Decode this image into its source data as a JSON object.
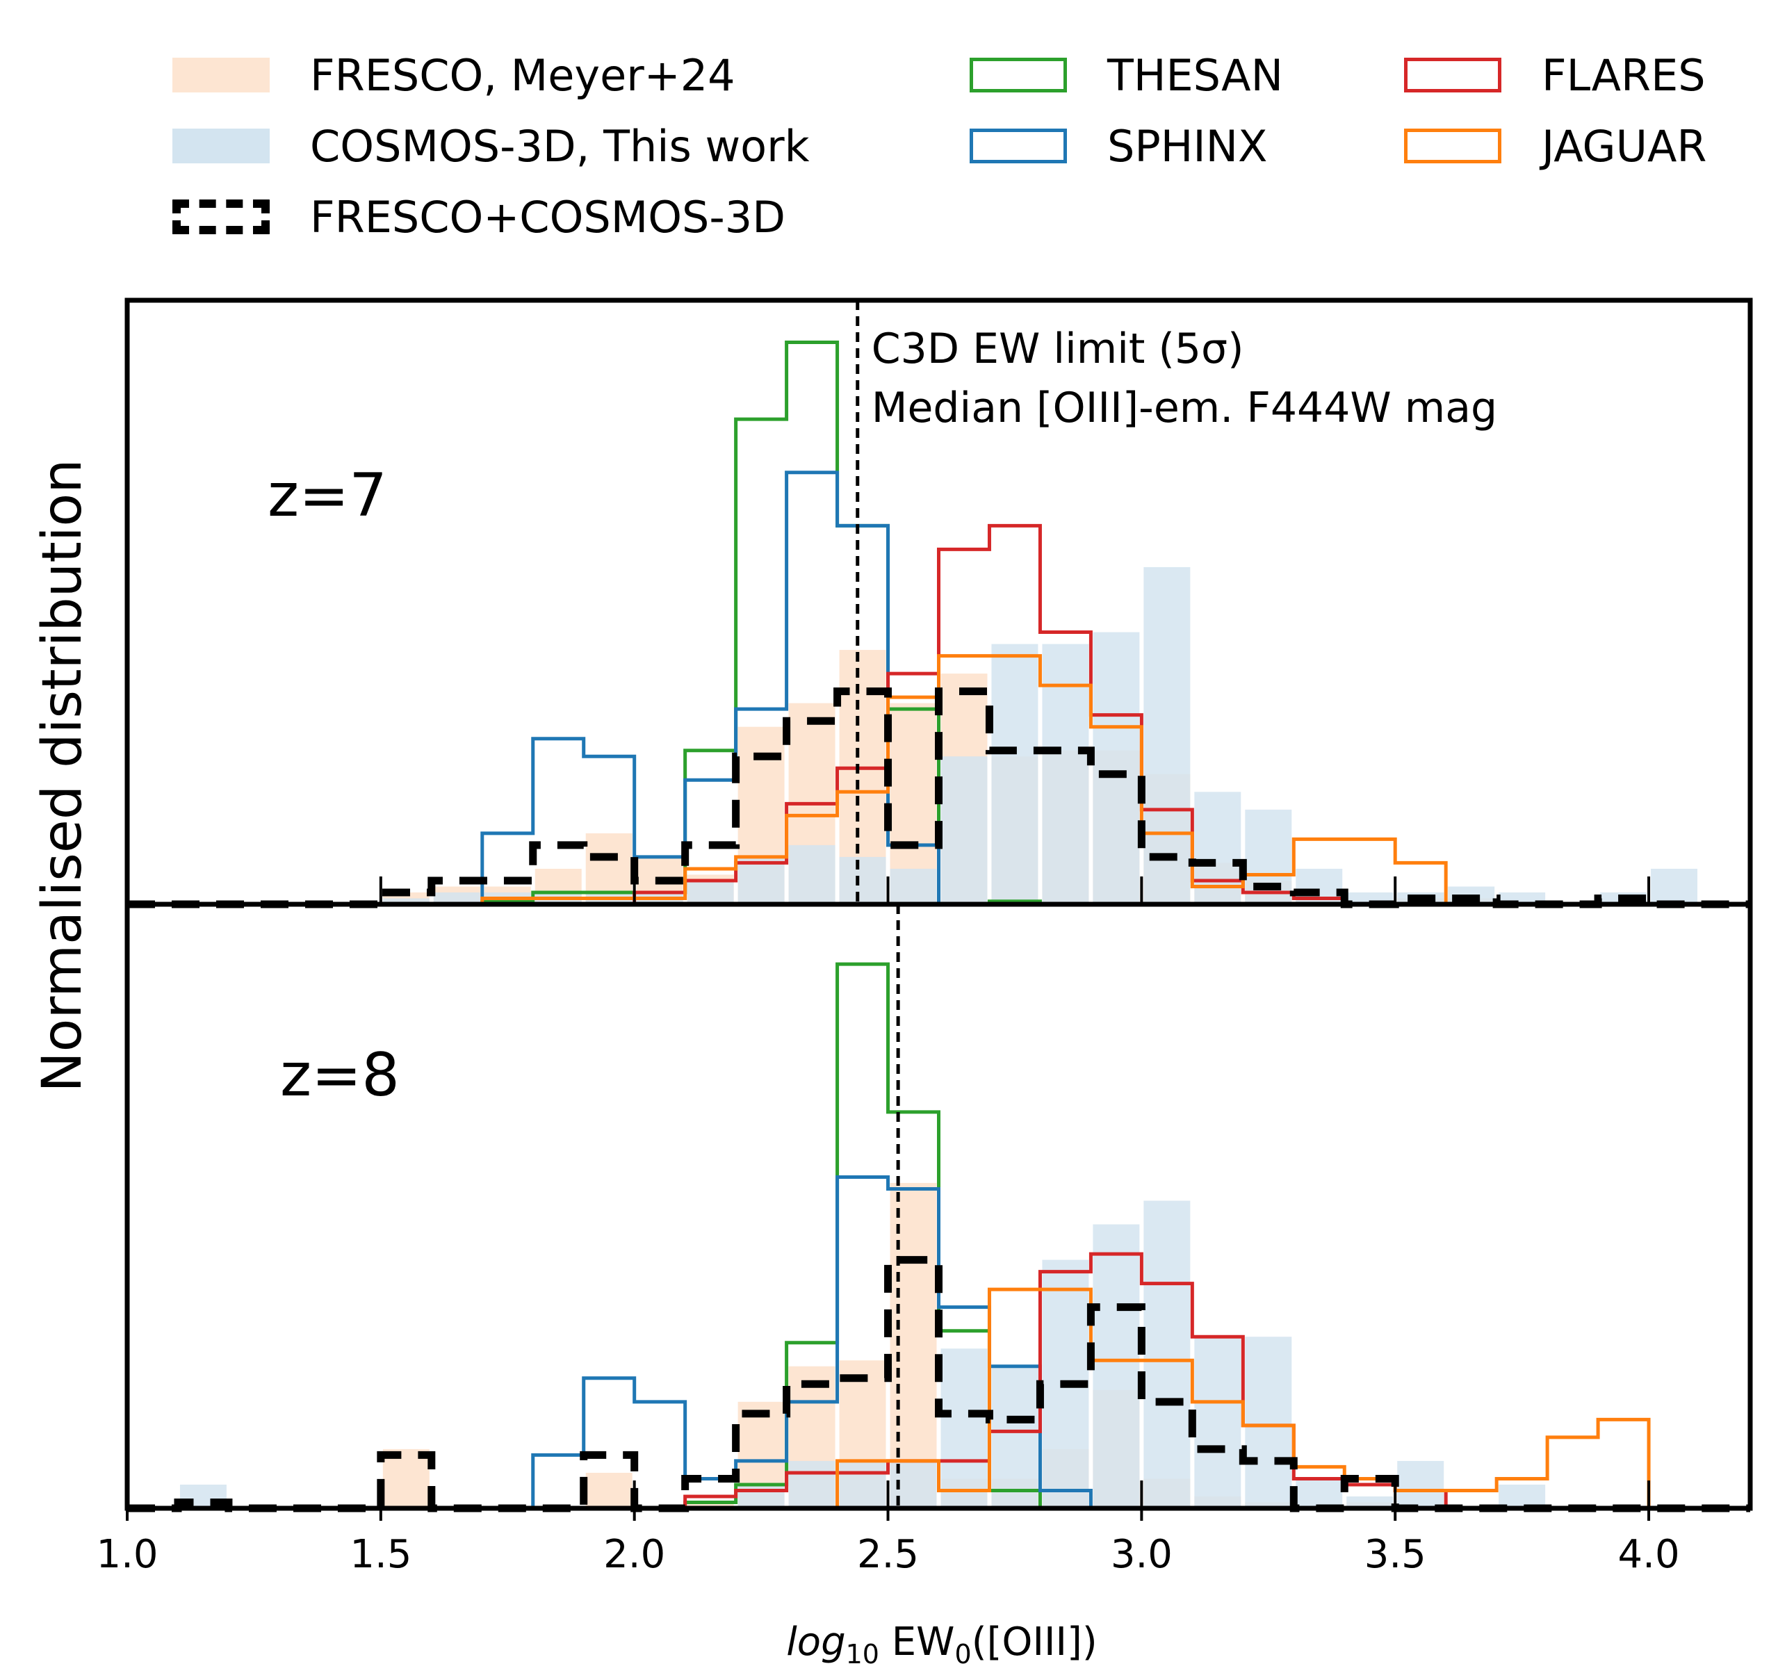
{
  "legend": [
    {
      "key": "fresco",
      "label": "FRESCO, Meyer+24",
      "style": "fill",
      "color": "#fde5d2"
    },
    {
      "key": "thesan",
      "label": "THESAN",
      "style": "step",
      "color": "#2ca02c"
    },
    {
      "key": "flares",
      "label": "FLARES",
      "style": "step",
      "color": "#d62728"
    },
    {
      "key": "cosmos",
      "label": "COSMOS-3D, This work",
      "style": "fill",
      "color": "#d3e4f0"
    },
    {
      "key": "sphinx",
      "label": "SPHINX",
      "style": "step",
      "color": "#1f77b4"
    },
    {
      "key": "jaguar",
      "label": "JAGUAR",
      "style": "step",
      "color": "#ff7f0e"
    },
    {
      "key": "combined",
      "label": "FRESCO+COSMOS-3D",
      "style": "dashed",
      "color": "#000000"
    }
  ],
  "axes": {
    "ylabel": "Normalised distribution",
    "xlabel_main": "log",
    "xlabel_sub": "10",
    "xlabel_rest": " EW",
    "xlabel_sub2": "0",
    "xlabel_end": "([OIII])"
  },
  "chart_data": {
    "type": "histogram",
    "xlim": [
      1.0,
      4.2
    ],
    "xticks": [
      1.0,
      1.5,
      2.0,
      2.5,
      3.0,
      3.5,
      4.0
    ],
    "xticklabels": [
      "1.0",
      "1.5",
      "2.0",
      "2.5",
      "3.0",
      "3.5",
      "4.0"
    ],
    "ylim": [
      0,
      1
    ],
    "bin_width": 0.1,
    "bin_edges": [
      1.0,
      1.1,
      1.2,
      1.3,
      1.4,
      1.5,
      1.6,
      1.7,
      1.8,
      1.9,
      2.0,
      2.1,
      2.2,
      2.3,
      2.4,
      2.5,
      2.6,
      2.7,
      2.8,
      2.9,
      3.0,
      3.1,
      3.2,
      3.3,
      3.4,
      3.5,
      3.6,
      3.7,
      3.8,
      3.9,
      4.0,
      4.1,
      4.2
    ],
    "panels": [
      {
        "label": "z=7",
        "vline_x": 2.44,
        "annotation": [
          "C3D EW limit (5σ)",
          "Median [OIII]-em. F444W mag"
        ],
        "series": {
          "fresco": [
            0,
            0,
            0,
            0,
            0,
            0.02,
            0.03,
            0.03,
            0.06,
            0.12,
            0.08,
            0.05,
            0.3,
            0.34,
            0.43,
            0.34,
            0.39,
            0.25,
            0.26,
            0.26,
            0.22,
            0.07,
            0.04,
            0.01,
            0,
            0.01,
            0.01,
            0,
            0,
            0,
            0,
            0
          ],
          "cosmos": [
            0,
            0,
            0,
            0,
            0,
            0.01,
            0.02,
            0.02,
            0.02,
            0.02,
            0.02,
            0.04,
            0.08,
            0.1,
            0.08,
            0.06,
            0.25,
            0.44,
            0.44,
            0.46,
            0.57,
            0.19,
            0.16,
            0.06,
            0.02,
            0.02,
            0.03,
            0.02,
            0,
            0.02,
            0.06,
            0
          ],
          "combined": [
            0,
            0,
            0,
            0,
            0,
            0.02,
            0.04,
            0.04,
            0.1,
            0.08,
            0.04,
            0.1,
            0.25,
            0.31,
            0.36,
            0.1,
            0.36,
            0.26,
            0.26,
            0.22,
            0.08,
            0.07,
            0.03,
            0.02,
            0,
            0.01,
            0.01,
            0,
            0,
            0.01,
            0,
            0
          ],
          "thesan": [
            0,
            0,
            0,
            0,
            0,
            0,
            0,
            0.005,
            0.02,
            0.02,
            0.02,
            0.26,
            0.82,
            0.95,
            0.64,
            0.33,
            0,
            0.005,
            0,
            0,
            0,
            0,
            0,
            0,
            0,
            0,
            0,
            0,
            0,
            0,
            0,
            0
          ],
          "sphinx": [
            0,
            0,
            0,
            0,
            0,
            0,
            0,
            0.12,
            0.28,
            0.25,
            0.08,
            0.21,
            0.33,
            0.73,
            0.64,
            0.1,
            0,
            0,
            0,
            0,
            0,
            0,
            0,
            0,
            0,
            0,
            0,
            0,
            0,
            0,
            0,
            0
          ],
          "flares": [
            0,
            0,
            0,
            0,
            0,
            0,
            0,
            0,
            0,
            0,
            0.02,
            0.04,
            0.07,
            0.17,
            0.23,
            0.39,
            0.6,
            0.64,
            0.46,
            0.32,
            0.16,
            0.04,
            0.02,
            0.01,
            0,
            0,
            0,
            0,
            0,
            0,
            0,
            0
          ],
          "jaguar": [
            0,
            0,
            0,
            0,
            0,
            0,
            0,
            0.01,
            0.01,
            0.01,
            0.01,
            0.06,
            0.08,
            0.15,
            0.19,
            0.35,
            0.42,
            0.42,
            0.37,
            0.3,
            0.12,
            0.03,
            0.05,
            0.11,
            0.11,
            0.07,
            0,
            0,
            0,
            0,
            0,
            0
          ]
        }
      },
      {
        "label": "z=8",
        "vline_x": 2.52,
        "annotation": [],
        "series": {
          "fresco": [
            0,
            0,
            0,
            0,
            0,
            0.1,
            0,
            0,
            0,
            0.06,
            0,
            0.01,
            0.18,
            0.24,
            0.25,
            0.55,
            0.05,
            0.05,
            0.1,
            0.2,
            0.05,
            0.02,
            0.01,
            0,
            0.01,
            0,
            0,
            0,
            0,
            0,
            0,
            0
          ],
          "cosmos": [
            0,
            0.04,
            0,
            0,
            0,
            0,
            0,
            0,
            0,
            0,
            0,
            0,
            0.04,
            0.08,
            0.08,
            0.08,
            0.27,
            0.24,
            0.42,
            0.48,
            0.52,
            0.29,
            0.29,
            0.05,
            0.02,
            0.08,
            0,
            0.04,
            0,
            0,
            0,
            0
          ],
          "combined": [
            0,
            0.01,
            0,
            0,
            0,
            0.09,
            0,
            0,
            0,
            0.09,
            0,
            0.05,
            0.16,
            0.21,
            0.22,
            0.42,
            0.16,
            0.15,
            0.21,
            0.34,
            0.18,
            0.1,
            0.08,
            0,
            0.05,
            0,
            0,
            0,
            0,
            0,
            0,
            0
          ],
          "thesan": [
            0,
            0,
            0,
            0,
            0,
            0,
            0,
            0,
            0,
            0,
            0,
            0.01,
            0.04,
            0.28,
            0.92,
            0.67,
            0.3,
            0.03,
            0,
            0,
            0,
            0,
            0,
            0,
            0,
            0,
            0,
            0,
            0,
            0,
            0,
            0
          ],
          "sphinx": [
            0,
            0,
            0,
            0,
            0,
            0,
            0,
            0,
            0.09,
            0.22,
            0.18,
            0.05,
            0.08,
            0.18,
            0.56,
            0.54,
            0.34,
            0.24,
            0.03,
            0,
            0,
            0,
            0,
            0,
            0,
            0,
            0,
            0,
            0,
            0,
            0,
            0
          ],
          "flares": [
            0,
            0,
            0,
            0,
            0,
            0,
            0,
            0,
            0,
            0,
            0,
            0.02,
            0.03,
            0.06,
            0.06,
            0.08,
            0.08,
            0.13,
            0.4,
            0.43,
            0.38,
            0.29,
            0.14,
            0.05,
            0.04,
            0.03,
            0,
            0,
            0,
            0,
            0,
            0
          ],
          "jaguar": [
            0,
            0,
            0,
            0,
            0,
            0,
            0,
            0,
            0,
            0,
            0,
            0,
            0,
            0,
            0.08,
            0.08,
            0.03,
            0.37,
            0.37,
            0.25,
            0.25,
            0.18,
            0.14,
            0.07,
            0.05,
            0.03,
            0.03,
            0.05,
            0.12,
            0.15,
            0,
            0
          ]
        }
      }
    ]
  }
}
